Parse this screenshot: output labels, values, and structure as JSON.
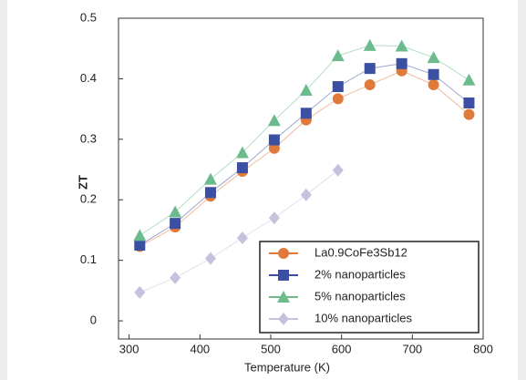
{
  "chart_data": {
    "type": "line",
    "x_label": "Temperature (K)",
    "y_label": "ZT",
    "x": [
      315,
      365,
      415,
      460,
      505,
      550,
      595,
      640,
      685,
      730,
      780
    ],
    "series": [
      {
        "name": "La0.9CoFe3Sb12",
        "color": "#e07a3a",
        "marker": "circle",
        "values": [
          0.123,
          0.155,
          0.206,
          0.247,
          0.285,
          0.332,
          0.367,
          0.39,
          0.413,
          0.39,
          0.341
        ]
      },
      {
        "name": "2%  nanoparticles",
        "color": "#3b4fa3",
        "marker": "square",
        "values": [
          0.125,
          0.161,
          0.212,
          0.253,
          0.299,
          0.343,
          0.387,
          0.417,
          0.425,
          0.407,
          0.36
        ]
      },
      {
        "name": "5%  nanoparticles",
        "color": "#6cbb8c",
        "marker": "triangle",
        "values": [
          0.141,
          0.18,
          0.234,
          0.278,
          0.331,
          0.381,
          0.438,
          0.455,
          0.454,
          0.435,
          0.398
        ]
      },
      {
        "name": "10% nanoparticles",
        "color": "#c7c1de",
        "marker": "diamond",
        "values": [
          0.047,
          0.071,
          0.103,
          0.137,
          0.17,
          0.208,
          0.249,
          null,
          null,
          null,
          null
        ]
      }
    ],
    "xlim": [
      285,
      800
    ],
    "ylim": [
      -0.03,
      0.5
    ],
    "xticks": [
      300,
      400,
      500,
      600,
      700,
      800
    ],
    "yticks": [
      0,
      0.1,
      0.2,
      0.3,
      0.4,
      0.5
    ],
    "legend": "lower right"
  }
}
